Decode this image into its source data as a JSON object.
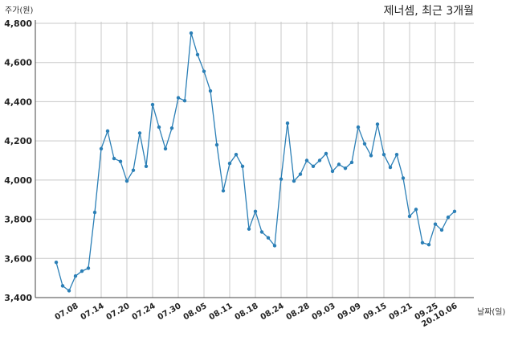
{
  "chart_data": {
    "type": "line",
    "title": "제너셈, 최근 3개월",
    "ylabel": "주가(원)",
    "xlabel": "날짜(일)",
    "ylim": [
      3400,
      4800
    ],
    "yticks": [
      3400,
      3600,
      3800,
      4000,
      4200,
      4400,
      4600,
      4800
    ],
    "ytick_labels": [
      "3,400",
      "3,600",
      "3,800",
      "4,000",
      "4,200",
      "4,400",
      "4,600",
      "4,800"
    ],
    "xtick_labels": [
      {
        "label": "07.08",
        "index": 3
      },
      {
        "label": "07.14",
        "index": 7
      },
      {
        "label": "07.20",
        "index": 11
      },
      {
        "label": "07.24",
        "index": 15
      },
      {
        "label": "07.30",
        "index": 19
      },
      {
        "label": "08.05",
        "index": 23
      },
      {
        "label": "08.11",
        "index": 27
      },
      {
        "label": "08.18",
        "index": 31
      },
      {
        "label": "08.24",
        "index": 35
      },
      {
        "label": "08.28",
        "index": 39
      },
      {
        "label": "09.03",
        "index": 43
      },
      {
        "label": "09.09",
        "index": 47
      },
      {
        "label": "09.15",
        "index": 51
      },
      {
        "label": "09.21",
        "index": 55
      },
      {
        "label": "09.25",
        "index": 59
      },
      {
        "label": "20.10.06",
        "index": 62
      }
    ],
    "grid": true,
    "series": [
      {
        "values": [
          3580,
          3460,
          3435,
          3510,
          3535,
          3550,
          3835,
          4160,
          4250,
          4110,
          4095,
          3995,
          4050,
          4240,
          4070,
          4385,
          4270,
          4160,
          4265,
          4420,
          4405,
          4750,
          4640,
          4555,
          4455,
          4180,
          3945,
          4085,
          4130,
          4070,
          3750,
          3840,
          3735,
          3705,
          3665,
          4005,
          4290,
          3995,
          4030,
          4100,
          4070,
          4100,
          4135,
          4045,
          4080,
          4060,
          4090,
          4270,
          4185,
          4125,
          4285,
          4130,
          4065,
          4130,
          4010,
          3815,
          3850,
          3680,
          3670,
          3775,
          3745,
          3810,
          3840
        ]
      }
    ],
    "colors": {
      "line": "#2b7fb6",
      "grid": "#c8c8c8"
    }
  }
}
